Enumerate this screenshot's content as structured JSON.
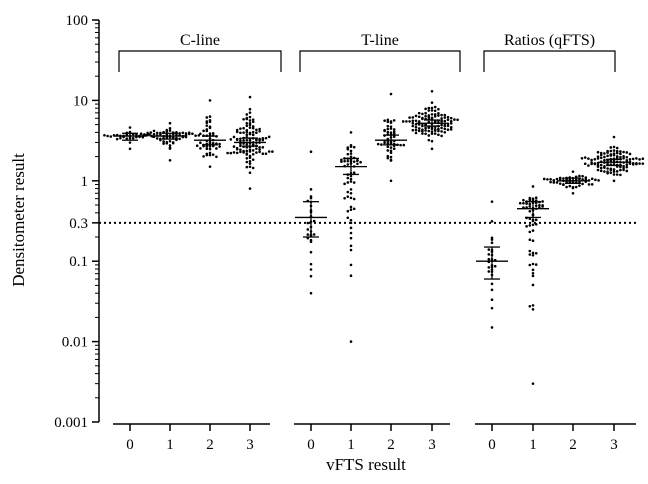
{
  "chart_data": {
    "type": "scatter",
    "subtype": "dot-plot",
    "xlabel": "vFTS result",
    "ylabel": "Densitometer result",
    "y_scale": "log",
    "ylim": [
      0.001,
      100
    ],
    "y_ticks": [
      0.001,
      0.01,
      0.1,
      0.3,
      1,
      10,
      100
    ],
    "y_tick_labels": [
      "0.001",
      "0.01",
      "0.1",
      "0.3",
      "1",
      "10",
      "100"
    ],
    "reference_line": {
      "y": 0.3,
      "style": "dotted"
    },
    "groups": [
      {
        "label": "C-line",
        "categories": [
          "0",
          "1",
          "2",
          "3"
        ],
        "series": [
          {
            "category": "0",
            "median": 3.6,
            "ci": [
              3.2,
              3.9
            ],
            "range": [
              2.5,
              4.6
            ],
            "n": 30
          },
          {
            "category": "1",
            "median": 3.6,
            "ci": [
              3.3,
              3.9
            ],
            "range": [
              1.8,
              5.2
            ],
            "n": 60
          },
          {
            "category": "2",
            "median": 3.2,
            "ci": [
              2.8,
              3.6
            ],
            "range": [
              1.5,
              10
            ],
            "n": 50
          },
          {
            "category": "3",
            "median": 3.0,
            "ci": [
              2.7,
              3.4
            ],
            "range": [
              0.8,
              11
            ],
            "n": 110
          }
        ]
      },
      {
        "label": "T-line",
        "categories": [
          "0",
          "1",
          "2",
          "3"
        ],
        "series": [
          {
            "category": "0",
            "median": 0.35,
            "ci": [
              0.2,
              0.55
            ],
            "range": [
              0.04,
              2.3
            ],
            "n": 28
          },
          {
            "category": "1",
            "median": 1.5,
            "ci": [
              1.2,
              1.9
            ],
            "range": [
              0.01,
              4
            ],
            "n": 60
          },
          {
            "category": "2",
            "median": 3.2,
            "ci": [
              2.8,
              3.7
            ],
            "range": [
              1.0,
              12
            ],
            "n": 50
          },
          {
            "category": "3",
            "median": 5.2,
            "ci": [
              4.8,
              5.7
            ],
            "range": [
              2.5,
              13
            ],
            "n": 110
          }
        ]
      },
      {
        "label": "Ratios (qFTS)",
        "categories": [
          "0",
          "1",
          "2",
          "3"
        ],
        "series": [
          {
            "category": "0",
            "median": 0.1,
            "ci": [
              0.06,
              0.15
            ],
            "range": [
              0.015,
              0.55
            ],
            "n": 28
          },
          {
            "category": "1",
            "median": 0.45,
            "ci": [
              0.35,
              0.55
            ],
            "range": [
              0.003,
              0.85
            ],
            "n": 60
          },
          {
            "category": "2",
            "median": 1.0,
            "ci": [
              0.93,
              1.08
            ],
            "range": [
              0.7,
              1.3
            ],
            "n": 50
          },
          {
            "category": "3",
            "median": 1.7,
            "ci": [
              1.55,
              1.85
            ],
            "range": [
              1.0,
              3.5
            ],
            "n": 110
          }
        ]
      }
    ],
    "legend": "none",
    "grid": false
  }
}
